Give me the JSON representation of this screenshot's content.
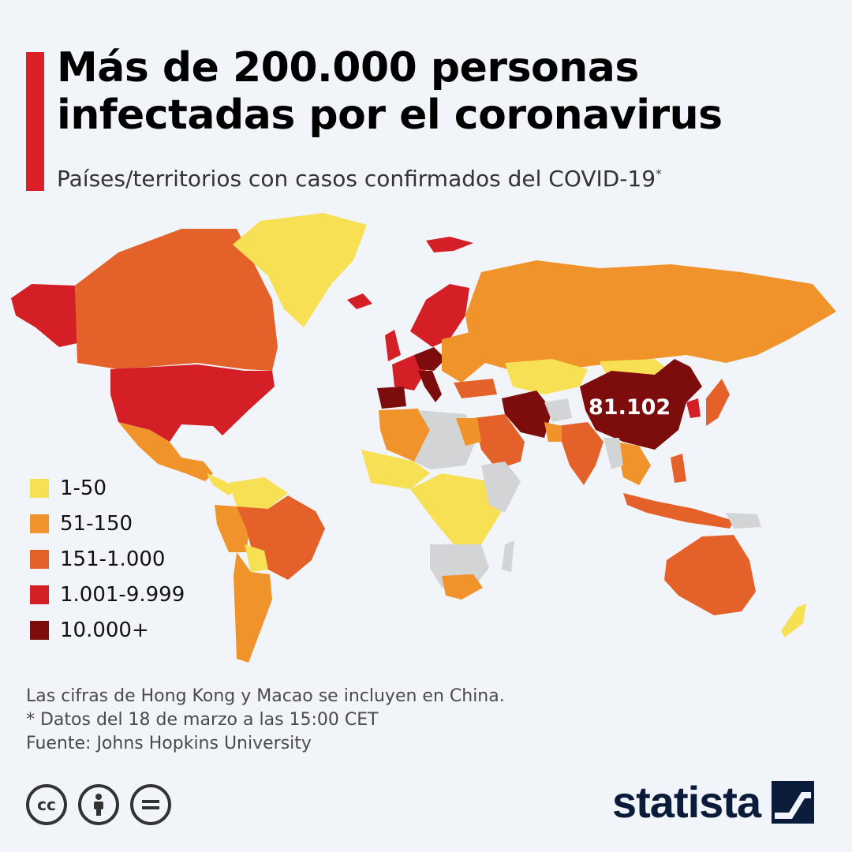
{
  "title_lines": [
    "Más de 200.000 personas",
    "infectadas por el coronavirus"
  ],
  "subtitle": "Países/territorios con casos confirmados del COVID-19",
  "subtitle_mark": "*",
  "colors": {
    "accent": "#dc1e27",
    "background": "#f1f4f8",
    "no_data": "#d2d4d6",
    "scale": [
      "#f7e053",
      "#f0932a",
      "#e4622a",
      "#d41f26",
      "#7d0d0d"
    ]
  },
  "legend": [
    {
      "label": "1-50",
      "color": "#f7e053"
    },
    {
      "label": "51-150",
      "color": "#f0932a"
    },
    {
      "label": "151-1.000",
      "color": "#e4622a"
    },
    {
      "label": "1.001-9.999",
      "color": "#d41f26"
    },
    {
      "label": "10.000+",
      "color": "#7d0d0d"
    }
  ],
  "map": {
    "highlight_label": "81.102",
    "highlight_region": "China"
  },
  "notes": [
    "Las cifras de Hong Kong y Macao se incluyen en China.",
    "* Datos del 18 de marzo a las 15:00 CET",
    "Fuente: Johns Hopkins University"
  ],
  "license_icons": [
    "creative-commons-icon",
    "attribution-icon",
    "no-derivatives-icon"
  ],
  "cc_text": "cc",
  "brand": {
    "name": "statista",
    "icon": "statista-logo-icon"
  }
}
